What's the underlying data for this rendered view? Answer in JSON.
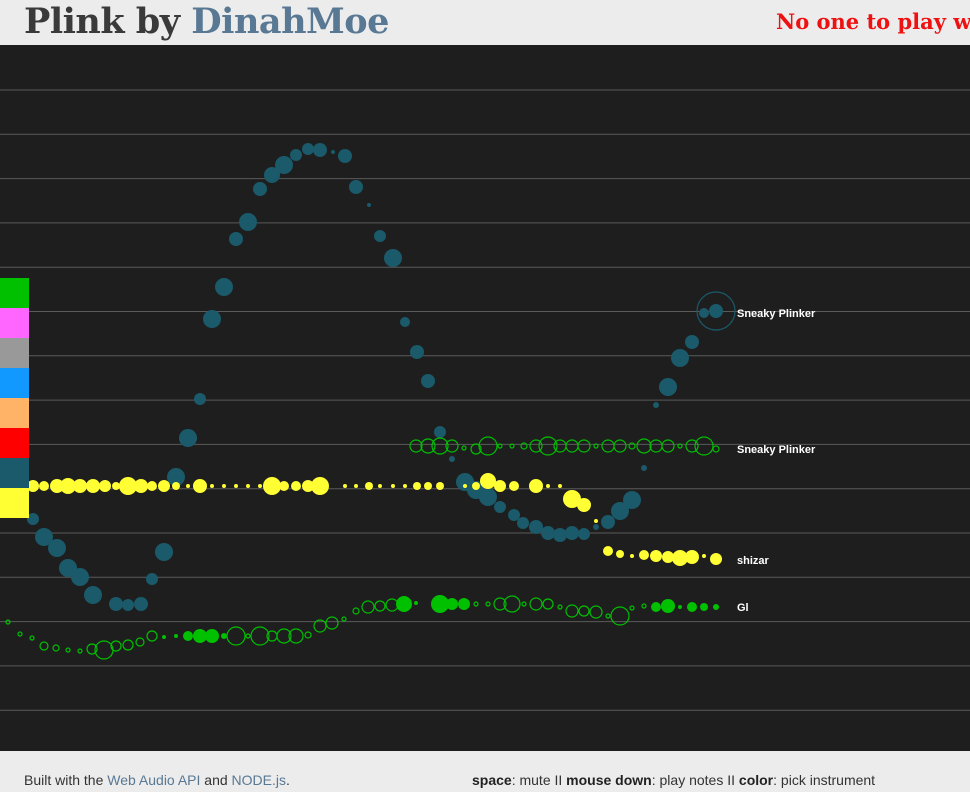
{
  "header": {
    "title_part1": "Plink by",
    "title_part2": "DinahMoe",
    "status": "No one to play wit"
  },
  "palette": [
    {
      "name": "green",
      "color": "#00c000"
    },
    {
      "name": "pink",
      "color": "#ff66ff"
    },
    {
      "name": "gray",
      "color": "#999999"
    },
    {
      "name": "blue",
      "color": "#1199ff"
    },
    {
      "name": "orange",
      "color": "#ffb366"
    },
    {
      "name": "red",
      "color": "#ff0000"
    },
    {
      "name": "teal",
      "color": "#1a5a6a"
    },
    {
      "name": "yellow",
      "color": "#ffff33"
    }
  ],
  "players": [
    {
      "name": "Sneaky Plinker",
      "color": "#1a5a6a"
    },
    {
      "name": "Sneaky Plinker",
      "color": "#00c000"
    },
    {
      "name": "shizar",
      "color": "#ffff33"
    },
    {
      "name": "Gl",
      "color": "#00c000"
    }
  ],
  "footer": {
    "built_prefix": "Built with the",
    "link1": "Web Audio API",
    "and": "and",
    "link2": "NODE.js",
    "period": ".",
    "key_space": "space",
    "desc_space": ": mute II",
    "key_mouse": "mouse down",
    "desc_mouse": ": play notes II",
    "key_color": "color",
    "desc_color": ": pick instrument"
  }
}
